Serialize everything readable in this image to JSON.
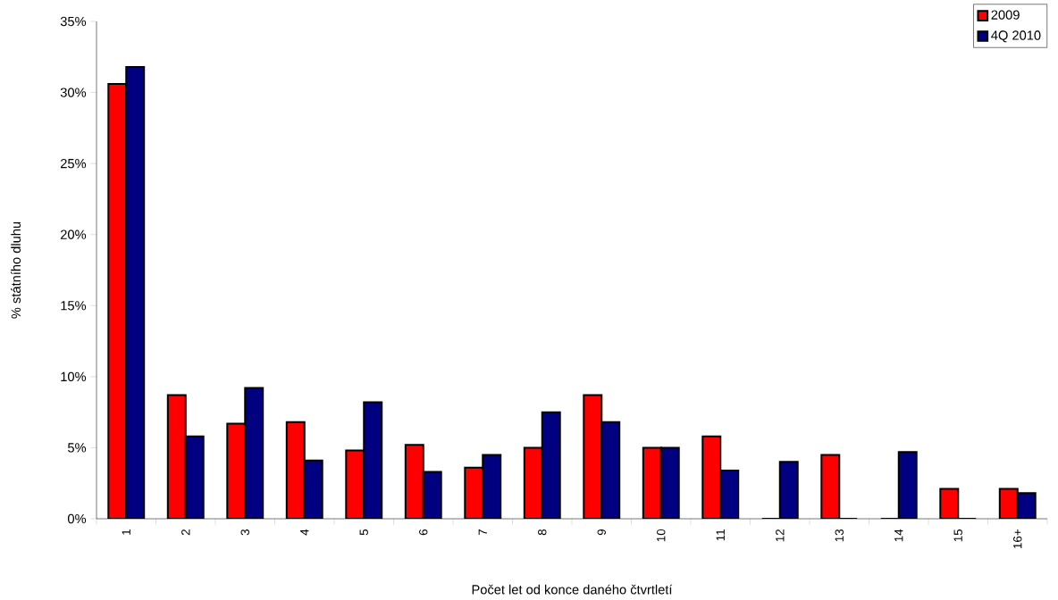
{
  "chart_data": {
    "type": "bar",
    "xlabel": "Počet let od konce daného čtvrtletí",
    "ylabel": "% státního dluhu",
    "categories": [
      "1",
      "2",
      "3",
      "4",
      "5",
      "6",
      "7",
      "8",
      "9",
      "10",
      "11",
      "12",
      "13",
      "14",
      "15",
      "16+"
    ],
    "series": [
      {
        "name": "2009",
        "color": "#ff0000",
        "values": [
          30.6,
          8.7,
          6.7,
          6.8,
          4.8,
          5.2,
          3.6,
          5.0,
          8.7,
          5.0,
          5.8,
          0,
          4.5,
          0,
          2.1,
          2.1
        ]
      },
      {
        "name": "4Q 2010",
        "color": "#000080",
        "values": [
          31.8,
          5.8,
          9.2,
          4.1,
          8.2,
          3.3,
          4.5,
          7.5,
          6.8,
          5.0,
          3.4,
          4.0,
          0,
          4.7,
          0,
          1.8
        ]
      }
    ],
    "ylim": [
      0,
      35
    ],
    "yticks": [
      {
        "value": 0,
        "label": "0%"
      },
      {
        "value": 5,
        "label": "5%"
      },
      {
        "value": 10,
        "label": "10%"
      },
      {
        "value": 15,
        "label": "15%"
      },
      {
        "value": 20,
        "label": "20%"
      },
      {
        "value": 25,
        "label": "25%"
      },
      {
        "value": 30,
        "label": "30%"
      },
      {
        "value": 35,
        "label": "35%"
      }
    ],
    "grid": false,
    "legend": "top right"
  }
}
